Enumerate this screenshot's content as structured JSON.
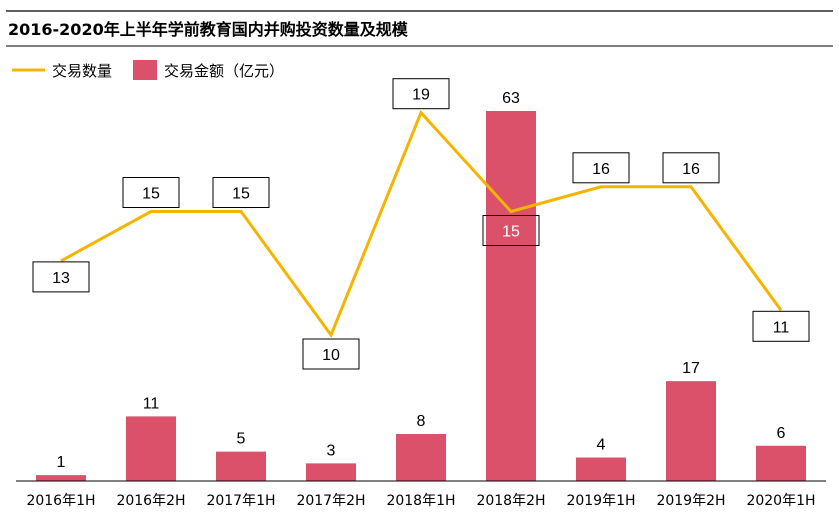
{
  "chart_data": {
    "type": "bar",
    "title": "2016-2020年上半年学前教育国内并购投资数量及规模",
    "legend_position": "top-left",
    "categories": [
      "2016年1H",
      "2016年2H",
      "2017年1H",
      "2017年2H",
      "2018年1H",
      "2018年2H",
      "2019年1H",
      "2019年2H",
      "2020年1H"
    ],
    "series": [
      {
        "name": "交易数量",
        "type": "line",
        "color": "#F5B400",
        "values": [
          13,
          15,
          15,
          10,
          19,
          15,
          16,
          16,
          11
        ]
      },
      {
        "name": "交易金额（亿元）",
        "type": "bar",
        "color": "#DB5169",
        "values": [
          1,
          11,
          5,
          3,
          8,
          63,
          4,
          17,
          6
        ]
      }
    ],
    "grid": false
  }
}
